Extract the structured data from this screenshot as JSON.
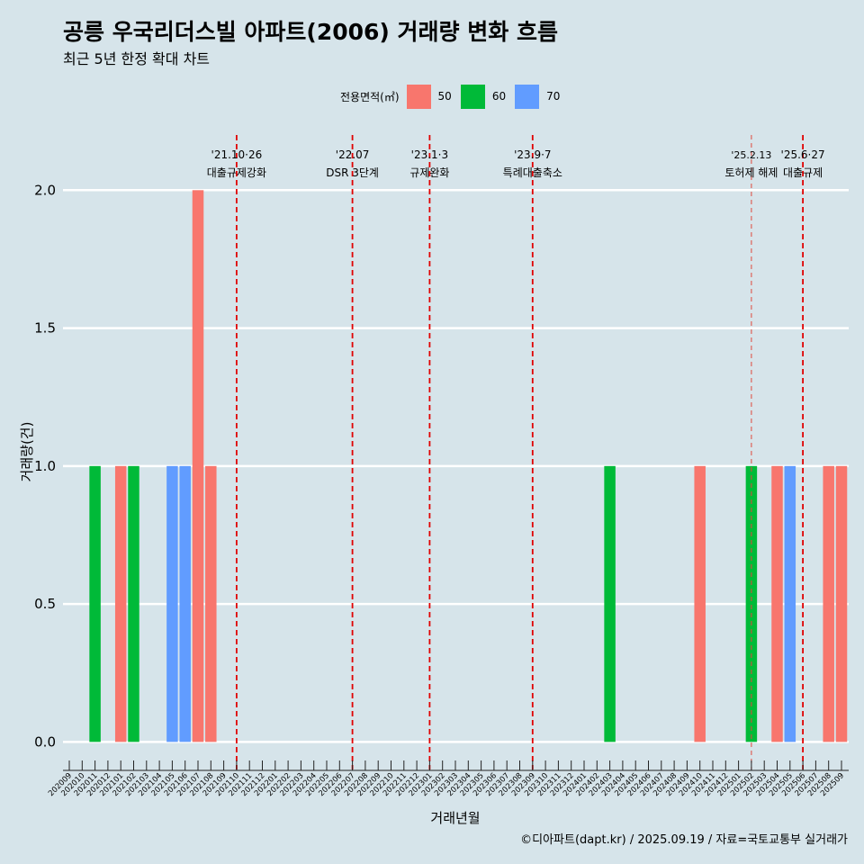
{
  "header": {
    "title": "공릉 우국리더스빌 아파트(2006) 거래량 변화 흐름",
    "subtitle": "최근 5년 한정 확대 차트"
  },
  "legend": {
    "title": "전용면적(㎡)",
    "items": [
      {
        "label": "50",
        "color": "#f8766d"
      },
      {
        "label": "60",
        "color": "#00ba38"
      },
      {
        "label": "70",
        "color": "#619cff"
      }
    ]
  },
  "caption": "©디아파트(dapt.kr) / 2025.09.19 / 자료=국토교통부 실거래가",
  "chart_data": {
    "type": "bar",
    "title": "공릉 우국리더스빌 아파트(2006) 거래량 변화 흐름",
    "xlabel": "거래년월",
    "ylabel": "거래량(건)",
    "ylim": [
      -0.1,
      2.2
    ],
    "yticks": [
      0.0,
      0.5,
      1.0,
      1.5,
      2.0
    ],
    "ytick_labels": [
      "0.0",
      "0.5",
      "1.0",
      "1.5",
      "2.0"
    ],
    "categories": [
      "202009",
      "202010",
      "202011",
      "202012",
      "202101",
      "202102",
      "202103",
      "202104",
      "202105",
      "202106",
      "202107",
      "202108",
      "202109",
      "202110",
      "202111",
      "202112",
      "202201",
      "202202",
      "202203",
      "202204",
      "202205",
      "202206",
      "202207",
      "202208",
      "202209",
      "202210",
      "202211",
      "202212",
      "202301",
      "202302",
      "202303",
      "202304",
      "202305",
      "202306",
      "202307",
      "202308",
      "202309",
      "202310",
      "202311",
      "202312",
      "202401",
      "202402",
      "202403",
      "202404",
      "202405",
      "202406",
      "202407",
      "202408",
      "202409",
      "202410",
      "202411",
      "202412",
      "202501",
      "202502",
      "202503",
      "202504",
      "202505",
      "202506",
      "202507",
      "202508",
      "202509"
    ],
    "series": [
      {
        "name": "50",
        "color": "#f8766d",
        "values": [
          0,
          0,
          0,
          0,
          1,
          0,
          0,
          0,
          0,
          0,
          2,
          1,
          0,
          0,
          0,
          0,
          0,
          0,
          0,
          0,
          0,
          0,
          0,
          0,
          0,
          0,
          0,
          0,
          0,
          0,
          0,
          0,
          0,
          0,
          0,
          0,
          0,
          0,
          0,
          0,
          0,
          0,
          0,
          0,
          0,
          0,
          0,
          0,
          0,
          1,
          0,
          0,
          0,
          0,
          0,
          1,
          0,
          0,
          0,
          1,
          1
        ]
      },
      {
        "name": "60",
        "color": "#00ba38",
        "values": [
          0,
          0,
          1,
          0,
          0,
          1,
          0,
          0,
          0,
          0,
          0,
          0,
          0,
          0,
          0,
          0,
          0,
          0,
          0,
          0,
          0,
          0,
          0,
          0,
          0,
          0,
          0,
          0,
          0,
          0,
          0,
          0,
          0,
          0,
          0,
          0,
          0,
          0,
          0,
          0,
          0,
          0,
          1,
          0,
          0,
          0,
          0,
          0,
          0,
          0,
          0,
          0,
          0,
          1,
          0,
          0,
          0,
          0,
          0,
          0,
          0
        ]
      },
      {
        "name": "70",
        "color": "#619cff",
        "values": [
          0,
          0,
          0,
          0,
          0,
          0,
          0,
          0,
          1,
          1,
          0,
          0,
          0,
          0,
          0,
          0,
          0,
          0,
          0,
          0,
          0,
          0,
          0,
          0,
          0,
          0,
          0,
          0,
          0,
          0,
          0,
          0,
          0,
          0,
          0,
          0,
          0,
          0,
          0,
          0,
          0,
          0,
          0,
          0,
          0,
          0,
          0,
          0,
          0,
          0,
          0,
          0,
          0,
          0,
          0,
          0,
          1,
          0,
          0,
          0,
          0
        ]
      }
    ],
    "annotations": [
      {
        "at": 13.0,
        "date": "'21.10·26",
        "label": "대출규제강화",
        "style": "thick"
      },
      {
        "at": 22.0,
        "date": "'22.07",
        "label": "DSR 3단계",
        "style": "thick"
      },
      {
        "at": 28.0,
        "date": "'23.1·3",
        "label": "규제완화",
        "style": "thick"
      },
      {
        "at": 36.0,
        "date": "'23.9·7",
        "label": "특례대출축소",
        "style": "thick"
      },
      {
        "at": 53.0,
        "date": "'25.2.13",
        "label": "토허제 해제",
        "style": "thin"
      },
      {
        "at": 57.0,
        "date": "'25.6·27",
        "label": "대출규제",
        "style": "thick"
      }
    ]
  }
}
